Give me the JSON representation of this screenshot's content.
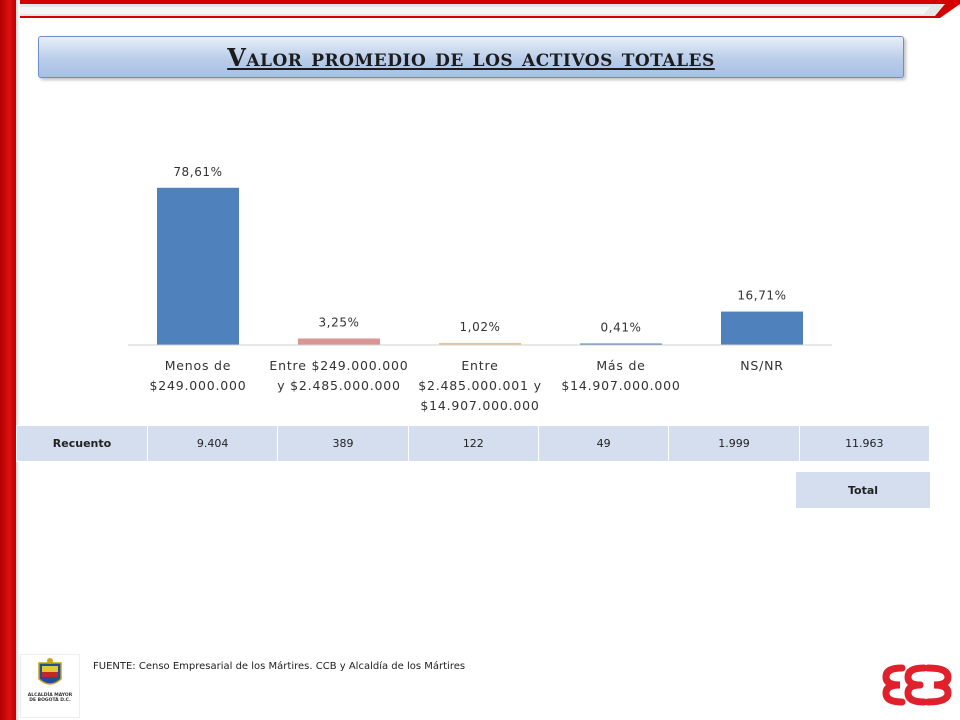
{
  "title": "Valor promedio de los activos totales",
  "chart_data": {
    "type": "bar",
    "categories": [
      "Menos de\n$249.000.000",
      "Entre $249.000.000\ny $2.485.000.000",
      "Entre\n$2.485.000.001 y\n$14.907.000.000",
      "Más de\n$14.907.000.000",
      "NS/NR"
    ],
    "values": [
      78.61,
      3.25,
      1.02,
      0.41,
      16.71
    ],
    "data_labels": [
      "78,61%",
      "3,25%",
      "1,02%",
      "0,41%",
      "16,71%"
    ],
    "colors": [
      "#4f81bd",
      "#d99694",
      "#f0c08a",
      "#4f81bd",
      "#4f81bd"
    ],
    "ylim": [
      0,
      100
    ],
    "grid": false,
    "legend": "none"
  },
  "table": {
    "row_label": "Recuento",
    "cells": [
      "9.404",
      "389",
      "122",
      "49",
      "1.999",
      "11.963"
    ],
    "total_label": "Total"
  },
  "footer": {
    "source": "FUENTE:  Censo Empresarial de los Mártires. CCB y Alcaldía de los Mártires",
    "logo_text": "ALCALDÍA MAYOR\nDE BOGOTÁ D.C."
  },
  "colors": {
    "frame_red": "#d40000",
    "title_fill": "#b9cdea"
  }
}
